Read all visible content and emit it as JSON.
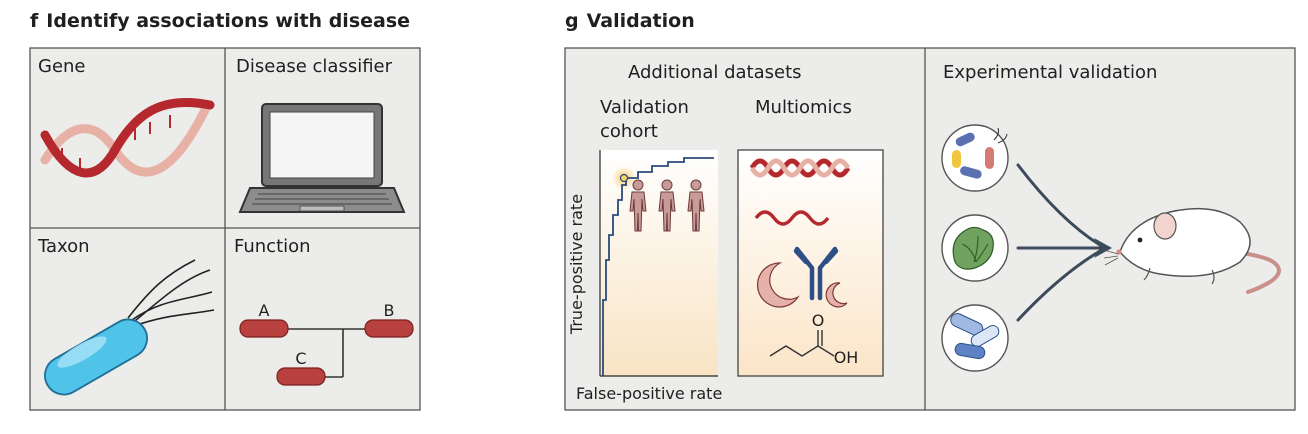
{
  "panel_f": {
    "letter": "f",
    "title": "Identify associations with disease",
    "cells": {
      "gene": "Gene",
      "disease_classifier": "Disease classifier",
      "taxon": "Taxon",
      "function": "Function"
    },
    "function_nodes": {
      "a": "A",
      "b": "B",
      "c": "C"
    }
  },
  "panel_g": {
    "letter": "g",
    "title": "Validation",
    "additional_datasets": "Additional datasets",
    "validation_cohort_line1": "Validation",
    "validation_cohort_line2": "cohort",
    "multiomics": "Multiomics",
    "true_positive_rate": "True-positive rate",
    "false_positive_rate": "False-positive rate",
    "experimental_validation": "Experimental validation",
    "chem_o": "O",
    "chem_oh": "OH"
  },
  "colors": {
    "panel_bg": "#ececea",
    "border": "#555555",
    "dna_red": "#b5282e",
    "dna_pink": "#e8b1a6",
    "bacterium_blue": "#4fc3e8",
    "node_red": "#b8403e",
    "roc_line": "#2a4b7c",
    "figure_pink": "#c89a98",
    "lettuce_green": "#6fa35f"
  },
  "icons": [
    "dna-icon",
    "laptop-icon",
    "bacterium-icon",
    "human-figure-icon",
    "antibody-icon",
    "lettuce-icon",
    "capsule-icon",
    "mouse-icon"
  ]
}
